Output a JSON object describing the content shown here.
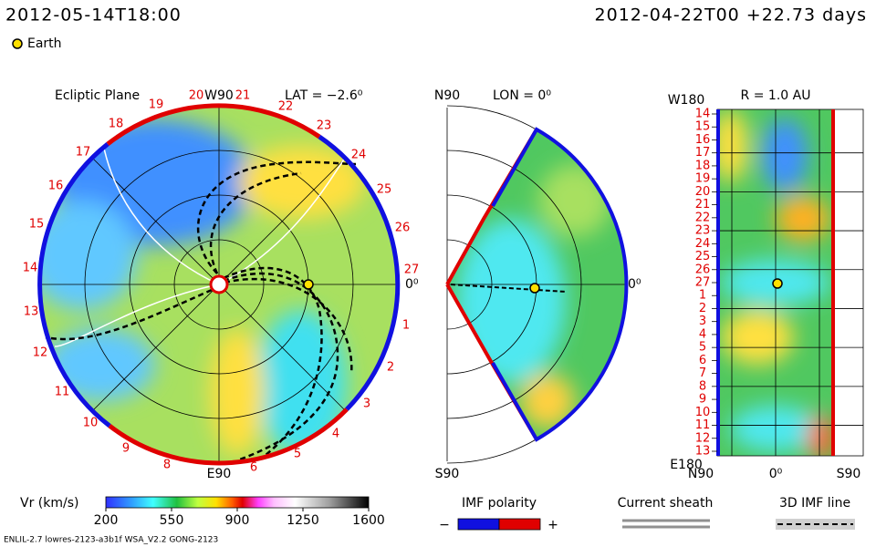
{
  "header": {
    "left": "2012-05-14T18:00",
    "right": "2012-04-22T00 +22.73 days"
  },
  "legend": {
    "earth": "Earth"
  },
  "ecliptic": {
    "title": "Ecliptic Plane",
    "top": "W90",
    "bottom": "E90",
    "right": "0⁰",
    "lat": "LAT = −2.6⁰",
    "carrington": [
      "19",
      "20",
      "21",
      "22",
      "23",
      "24",
      "25",
      "26",
      "27",
      "1",
      "2",
      "3",
      "4",
      "5",
      "6",
      "8",
      "9",
      "10",
      "11",
      "12",
      "13",
      "14",
      "15",
      "16",
      "17",
      "18"
    ]
  },
  "meridional": {
    "top": "N90",
    "lon": "LON = 0⁰",
    "right": "0⁰",
    "bottom": "S90"
  },
  "radial": {
    "title": "R = 1.0 AU",
    "top": "W180",
    "bottom": "E180",
    "x_left": "N90",
    "x_mid": "0⁰",
    "x_right": "S90",
    "rows": [
      "14",
      "15",
      "16",
      "17",
      "18",
      "19",
      "20",
      "21",
      "22",
      "23",
      "24",
      "25",
      "26",
      "27",
      "1",
      "2",
      "3",
      "4",
      "5",
      "6",
      "7",
      "8",
      "9",
      "10",
      "11",
      "12",
      "13"
    ]
  },
  "colorbar": {
    "label": "Vr (km/s)",
    "lim": [
      200,
      1600
    ],
    "ticks": [
      200,
      550,
      900,
      1250,
      1600
    ]
  },
  "imf": {
    "label": "IMF polarity",
    "minus": "−",
    "plus": "+"
  },
  "sheath": "Current sheath",
  "imf_line": "3D IMF line",
  "footer": "ENLIL-2.7 lowres-2123-a3b1f WSA_V2.2 GONG-2123"
}
